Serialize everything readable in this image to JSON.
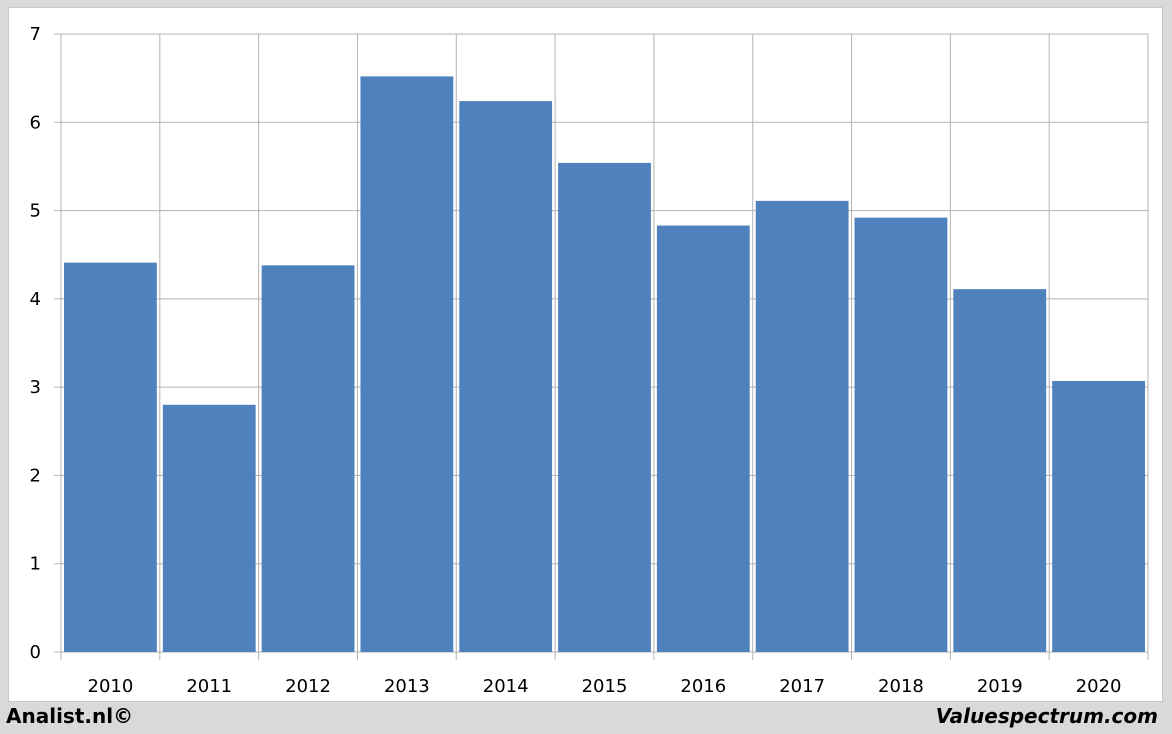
{
  "chart_data": {
    "type": "bar",
    "categories": [
      "2010",
      "2011",
      "2012",
      "2013",
      "2014",
      "2015",
      "2016",
      "2017",
      "2018",
      "2019",
      "2020"
    ],
    "values": [
      4.41,
      2.8,
      4.38,
      6.52,
      6.24,
      5.54,
      4.83,
      5.11,
      4.92,
      4.11,
      3.07
    ],
    "ylim": [
      0,
      7
    ],
    "yticks": [
      "0",
      "1",
      "2",
      "3",
      "4",
      "5",
      "6",
      "7"
    ],
    "grid": true,
    "bar_color": "#4f81bd",
    "grid_color": "#b3b3b3"
  },
  "footer": {
    "left": "Analist.nl©",
    "right": "Valuespectrum.com"
  }
}
